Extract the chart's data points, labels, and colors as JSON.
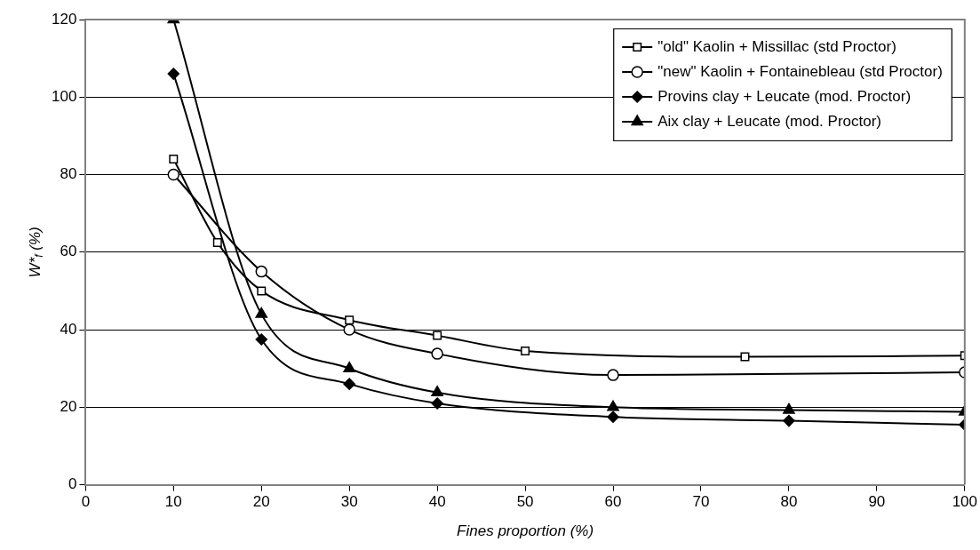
{
  "chart_data": {
    "type": "line",
    "xlabel": "Fines proportion (%)",
    "ylabel": "W*$_{f}$ (%)",
    "xlim": [
      0,
      100
    ],
    "xticks": [
      0,
      10,
      20,
      30,
      40,
      50,
      60,
      70,
      80,
      90,
      100
    ],
    "ylim": [
      0,
      120
    ],
    "yticks": [
      0,
      20,
      40,
      60,
      80,
      100,
      120
    ],
    "grid": "y",
    "legend": "top right",
    "series": [
      {
        "name": "\"old\" Kaolin + Missillac (std Proctor)",
        "color": "#000000",
        "marker": "square",
        "x": [
          10,
          15,
          20,
          30,
          40,
          50,
          75,
          100
        ],
        "values": [
          84,
          62.5,
          50,
          42.5,
          38.5,
          34.5,
          33,
          33.3
        ]
      },
      {
        "name": "\"new\" Kaolin + Fontainebleau (std Proctor)",
        "color": "#000000",
        "marker": "circle",
        "x": [
          10,
          20,
          30,
          40,
          60,
          100
        ],
        "values": [
          80,
          55,
          40,
          33.8,
          28.3,
          29
        ]
      },
      {
        "name": "Provins clay + Leucate (mod. Proctor)",
        "color": "#000000",
        "marker": "diamond",
        "x": [
          10,
          20,
          30,
          40,
          60,
          80,
          100
        ],
        "values": [
          106,
          37.5,
          26,
          21,
          17.5,
          16.5,
          15.5
        ]
      },
      {
        "name": "Aix clay + Leucate (mod. Proctor)",
        "color": "#000000",
        "marker": "triangle",
        "x": [
          10,
          20,
          30,
          40,
          60,
          80,
          100
        ],
        "values": [
          120,
          44,
          30,
          23.8,
          20,
          19.3,
          18.8
        ]
      }
    ]
  }
}
